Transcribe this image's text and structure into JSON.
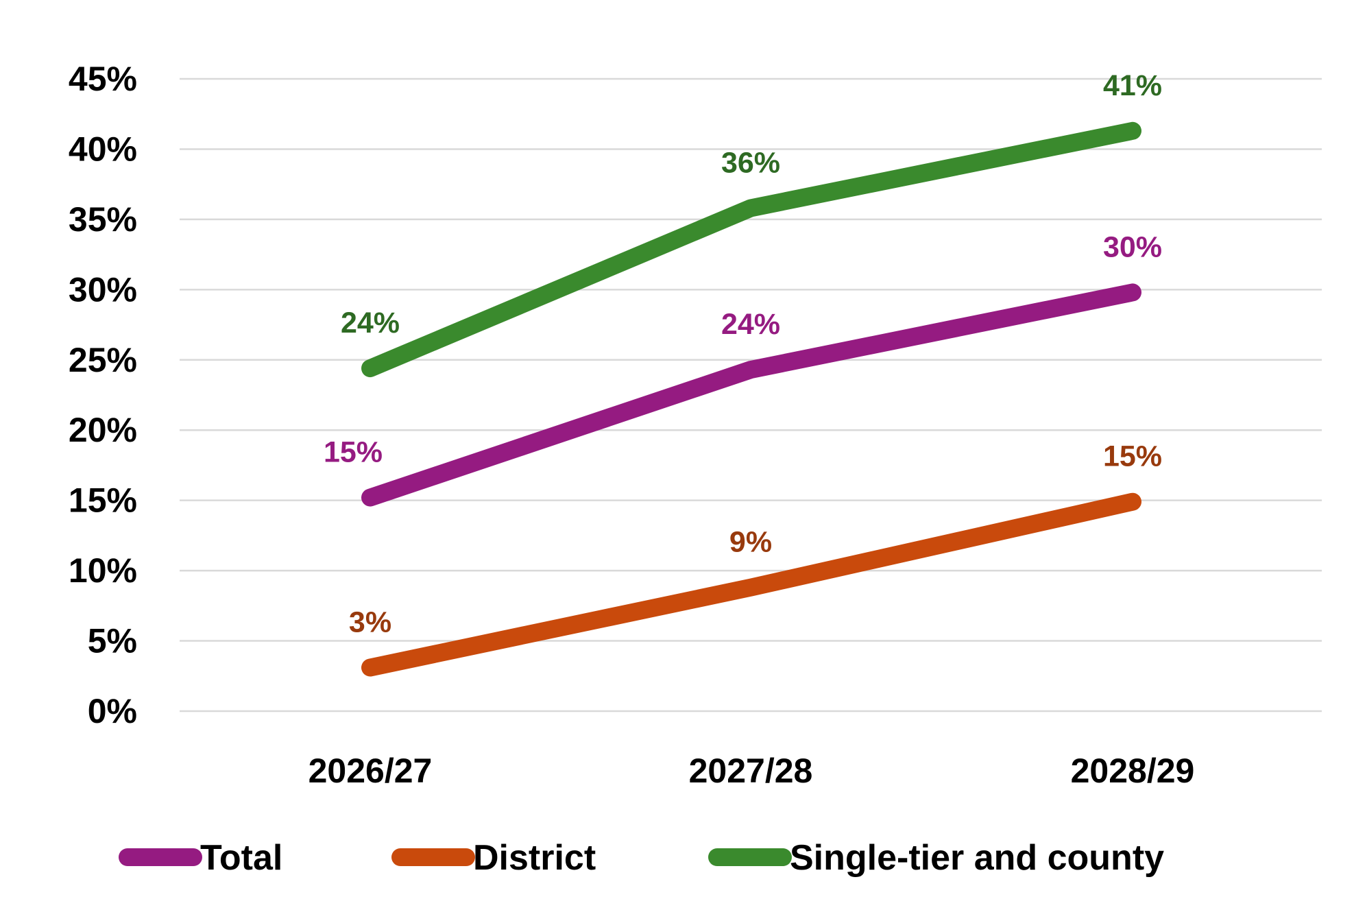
{
  "chart_data": {
    "type": "line",
    "title": "",
    "xlabel": "",
    "ylabel": "",
    "categories": [
      "2026/27",
      "2027/28",
      "2028/29"
    ],
    "ylim": [
      0,
      0.45
    ],
    "yticks": [
      0,
      0.05,
      0.1,
      0.15,
      0.2,
      0.25,
      0.3,
      0.35,
      0.4,
      0.45
    ],
    "ytick_labels": [
      "0%",
      "5%",
      "10%",
      "15%",
      "20%",
      "25%",
      "30%",
      "35%",
      "40%",
      "45%"
    ],
    "grid": true,
    "legend_position": "bottom",
    "series": [
      {
        "name": "Total",
        "color": "#951B81",
        "label_color": "#951B81",
        "values": [
          0.152,
          0.243,
          0.298
        ],
        "labels": [
          "15%",
          "24%",
          "30%"
        ]
      },
      {
        "name": "District",
        "color": "#C94A0C",
        "label_color": "#983A0D",
        "values": [
          0.031,
          0.088,
          0.149
        ],
        "labels": [
          "3%",
          "9%",
          "15%"
        ]
      },
      {
        "name": "Single-tier and county",
        "color": "#3A8A2D",
        "label_color": "#2E6A23",
        "values": [
          0.244,
          0.358,
          0.413
        ],
        "labels": [
          "24%",
          "36%",
          "41%"
        ]
      }
    ]
  }
}
